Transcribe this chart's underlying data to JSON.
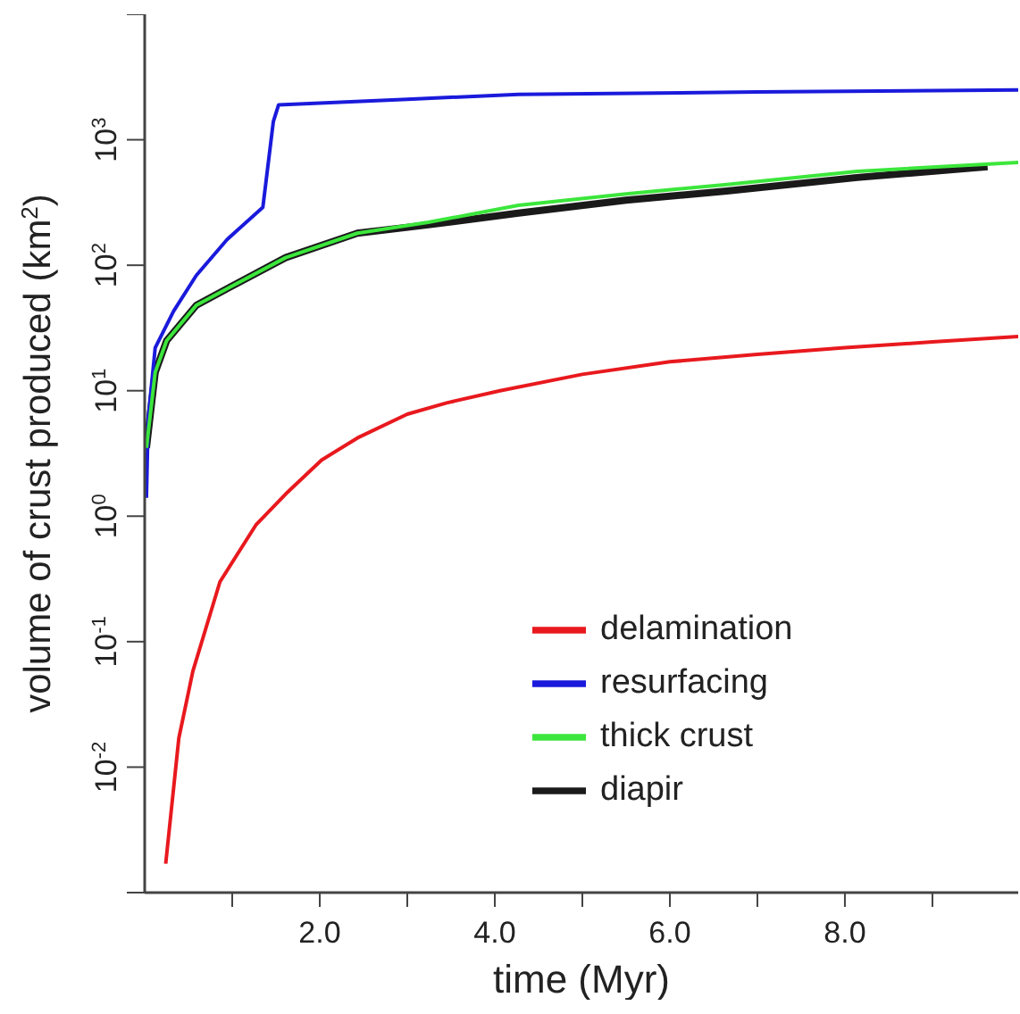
{
  "chart_data": {
    "type": "line",
    "xlabel": "time (Myr)",
    "ylabel": "volume of crust produced (km$^{2}$)",
    "xlim": [
      0,
      9.98
    ],
    "xticks": [
      {
        "value": 1,
        "label": null
      },
      {
        "value": 2,
        "label": "2.0"
      },
      {
        "value": 3,
        "label": null
      },
      {
        "value": 4,
        "label": "4.0"
      },
      {
        "value": 5,
        "label": null
      },
      {
        "value": 6,
        "label": "6.0"
      },
      {
        "value": 7,
        "label": null
      },
      {
        "value": 8,
        "label": "8.0"
      },
      {
        "value": 9,
        "label": null
      }
    ],
    "ylim": [
      0.001,
      10000
    ],
    "yticks": [
      {
        "value": 0.001,
        "label": null
      },
      {
        "value": 0.01,
        "label": "10$^{-2}$"
      },
      {
        "value": 0.1,
        "label": "10$^{-1}$"
      },
      {
        "value": 1,
        "label": "10$^{0}$"
      },
      {
        "value": 10,
        "label": "10$^{1}$"
      },
      {
        "value": 100,
        "label": "10$^{2}$"
      },
      {
        "value": 1000,
        "label": "10$^{3}$"
      },
      {
        "value": 10000,
        "label": null
      }
    ],
    "log": "y",
    "grid": false,
    "legend": "bottom right",
    "marker": "none",
    "line_style": "solid",
    "series": [
      {
        "name": "delamination",
        "color": "#e8191e",
        "x": [
          0.24,
          0.39,
          0.55,
          0.86,
          1.27,
          1.61,
          2.02,
          2.43,
          3.0,
          3.45,
          4.06,
          5.0,
          6.0,
          7.0,
          8.0,
          9.0,
          9.98
        ],
        "values": [
          0.0017,
          0.017,
          0.058,
          0.3,
          0.85,
          1.5,
          2.8,
          4.2,
          6.5,
          8,
          10,
          13.5,
          17,
          19.5,
          22,
          24.5,
          27
        ]
      },
      {
        "name": "resurfacing",
        "color": "#1a1adc",
        "x": [
          0.02,
          0.04,
          0.12,
          0.33,
          0.59,
          0.94,
          1.35,
          1.47,
          1.53,
          3.0,
          4.27,
          7.0,
          9.98
        ],
        "values": [
          1.4,
          6,
          22,
          43,
          83,
          160,
          290,
          1400,
          1900,
          2100,
          2300,
          2400,
          2500
        ]
      },
      {
        "name": "thick crust",
        "color": "#3ce63c",
        "x": [
          0.02,
          0.12,
          0.25,
          0.59,
          1.06,
          1.61,
          2.43,
          3.24,
          4.27,
          5.5,
          6.65,
          8.14,
          9.98
        ],
        "values": [
          3.5,
          14,
          25,
          48,
          72,
          115,
          180,
          220,
          300,
          370,
          440,
          560,
          660
        ]
      },
      {
        "name": "diapir",
        "color": "#1a1a1a",
        "x": [
          0.02,
          0.12,
          0.25,
          0.59,
          1.06,
          1.61,
          2.43,
          3.24,
          4.27,
          5.5,
          6.65,
          8.14,
          9.63
        ],
        "values": [
          3.5,
          14,
          25,
          48,
          72,
          115,
          180,
          210,
          260,
          330,
          390,
          500,
          610
        ]
      }
    ]
  }
}
